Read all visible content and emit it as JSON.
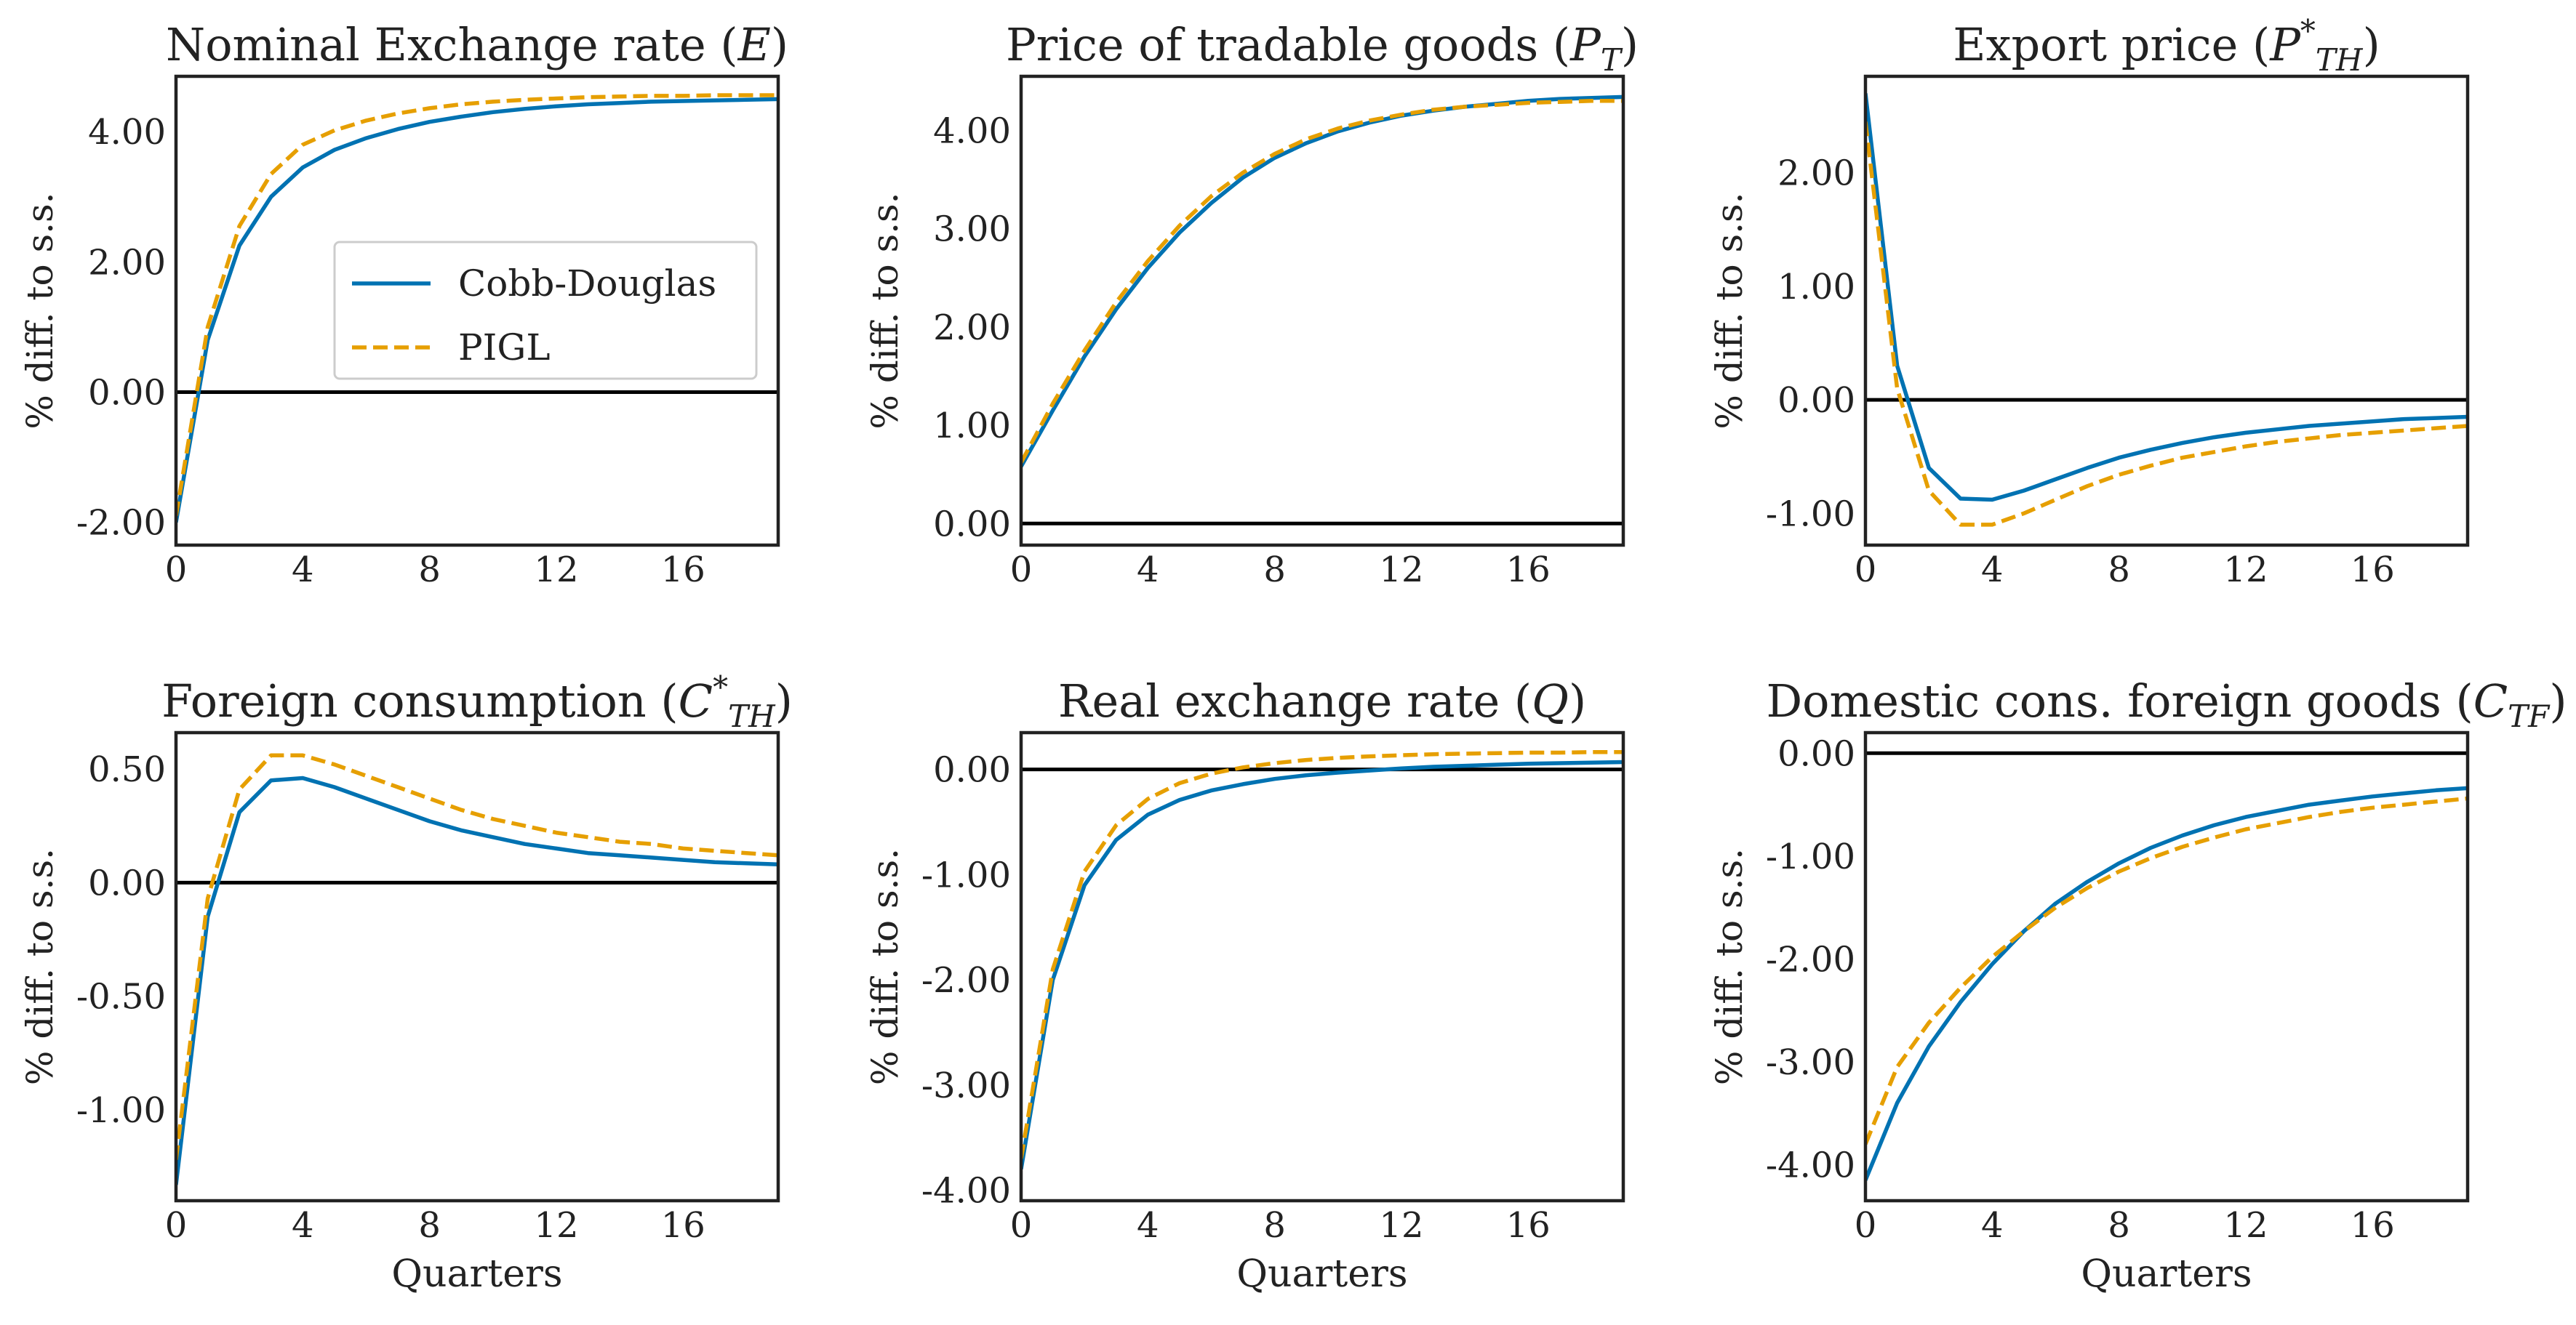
{
  "figure": {
    "colors": {
      "cobb": "#0072b2",
      "pigl": "#e69f00",
      "zero": "#000000",
      "frame": "#222222"
    },
    "legend": {
      "location": "center-right",
      "entries": [
        "Cobb-Douglas",
        "PIGL"
      ]
    }
  },
  "chart_data": [
    {
      "type": "line",
      "title": "Nominal Exchange rate (E)",
      "title_parts": [
        {
          "t": "Nominal Exchange rate ("
        },
        {
          "t": "E",
          "it": true
        },
        {
          "t": ")"
        }
      ],
      "xlabel": "",
      "ylabel": "% diff. to s.s.",
      "xlim": [
        0,
        19
      ],
      "ylim": [
        -2.35,
        4.85
      ],
      "xticks": [
        0,
        4,
        8,
        12,
        16
      ],
      "xtick_labels": [
        "0",
        "4",
        "8",
        "12",
        "16"
      ],
      "yticks": [
        -2,
        0,
        2,
        4
      ],
      "ytick_labels": [
        "-2.00",
        "0.00",
        "2.00",
        "4.00"
      ],
      "zero_line": true,
      "legend": true,
      "x": [
        0,
        1,
        2,
        3,
        4,
        5,
        6,
        7,
        8,
        9,
        10,
        11,
        12,
        13,
        14,
        15,
        16,
        17,
        18,
        19
      ],
      "series": [
        {
          "name": "Cobb-Douglas",
          "style": "solid",
          "values": [
            -2.0,
            0.8,
            2.25,
            3.0,
            3.45,
            3.72,
            3.9,
            4.04,
            4.15,
            4.23,
            4.3,
            4.35,
            4.39,
            4.42,
            4.44,
            4.46,
            4.47,
            4.48,
            4.49,
            4.5
          ]
        },
        {
          "name": "PIGL",
          "style": "dashed",
          "values": [
            -1.9,
            1.0,
            2.55,
            3.35,
            3.8,
            4.02,
            4.17,
            4.28,
            4.36,
            4.42,
            4.46,
            4.49,
            4.51,
            4.53,
            4.54,
            4.55,
            4.55,
            4.56,
            4.56,
            4.56
          ]
        }
      ]
    },
    {
      "type": "line",
      "title": "Price of tradable goods (P_T)",
      "title_parts": [
        {
          "t": "Price of tradable goods ("
        },
        {
          "t": "P",
          "it": true
        },
        {
          "t": "T",
          "it": true,
          "sub": true
        },
        {
          "t": ")"
        }
      ],
      "xlabel": "",
      "ylabel": "% diff. to s.s.",
      "xlim": [
        0,
        19
      ],
      "ylim": [
        -0.22,
        4.55
      ],
      "xticks": [
        0,
        4,
        8,
        12,
        16
      ],
      "xtick_labels": [
        "0",
        "4",
        "8",
        "12",
        "16"
      ],
      "yticks": [
        0,
        1,
        2,
        3,
        4
      ],
      "ytick_labels": [
        "0.00",
        "1.00",
        "2.00",
        "3.00",
        "4.00"
      ],
      "zero_line": true,
      "legend": false,
      "x": [
        0,
        1,
        2,
        3,
        4,
        5,
        6,
        7,
        8,
        9,
        10,
        11,
        12,
        13,
        14,
        15,
        16,
        17,
        18,
        19
      ],
      "series": [
        {
          "name": "Cobb-Douglas",
          "style": "solid",
          "values": [
            0.58,
            1.15,
            1.7,
            2.18,
            2.6,
            2.96,
            3.26,
            3.52,
            3.72,
            3.87,
            3.99,
            4.08,
            4.15,
            4.2,
            4.24,
            4.27,
            4.3,
            4.32,
            4.33,
            4.34
          ]
        },
        {
          "name": "PIGL",
          "style": "dashed",
          "values": [
            0.62,
            1.22,
            1.76,
            2.25,
            2.67,
            3.03,
            3.33,
            3.57,
            3.76,
            3.91,
            4.02,
            4.1,
            4.16,
            4.21,
            4.24,
            4.26,
            4.28,
            4.29,
            4.3,
            4.3
          ]
        }
      ]
    },
    {
      "type": "line",
      "title": "Export price (P*_TH)",
      "title_parts": [
        {
          "t": "Export price ("
        },
        {
          "t": "P",
          "it": true
        },
        {
          "t": "*",
          "sup": true
        },
        {
          "t": "TH",
          "it": true,
          "sub": true
        },
        {
          "t": ")"
        }
      ],
      "xlabel": "",
      "ylabel": "% diff. to s.s.",
      "xlim": [
        0,
        19
      ],
      "ylim": [
        -1.28,
        2.85
      ],
      "xticks": [
        0,
        4,
        8,
        12,
        16
      ],
      "xtick_labels": [
        "0",
        "4",
        "8",
        "12",
        "16"
      ],
      "yticks": [
        -1,
        0,
        1,
        2
      ],
      "ytick_labels": [
        "-1.00",
        "0.00",
        "1.00",
        "2.00"
      ],
      "zero_line": true,
      "legend": false,
      "x": [
        0,
        1,
        2,
        3,
        4,
        5,
        6,
        7,
        8,
        9,
        10,
        11,
        12,
        13,
        14,
        15,
        16,
        17,
        18,
        19
      ],
      "series": [
        {
          "name": "Cobb-Douglas",
          "style": "solid",
          "values": [
            2.7,
            0.3,
            -0.6,
            -0.87,
            -0.88,
            -0.8,
            -0.7,
            -0.6,
            -0.51,
            -0.44,
            -0.38,
            -0.33,
            -0.29,
            -0.26,
            -0.23,
            -0.21,
            -0.19,
            -0.17,
            -0.16,
            -0.15
          ]
        },
        {
          "name": "PIGL",
          "style": "dashed",
          "values": [
            2.45,
            0.1,
            -0.8,
            -1.1,
            -1.1,
            -1.0,
            -0.88,
            -0.76,
            -0.66,
            -0.58,
            -0.51,
            -0.46,
            -0.41,
            -0.37,
            -0.34,
            -0.31,
            -0.29,
            -0.27,
            -0.25,
            -0.23
          ]
        }
      ]
    },
    {
      "type": "line",
      "title": "Foreign consumption (C*_TH)",
      "title_parts": [
        {
          "t": "Foreign consumption ("
        },
        {
          "t": "C",
          "it": true
        },
        {
          "t": "*",
          "sup": true
        },
        {
          "t": "TH",
          "it": true,
          "sub": true
        },
        {
          "t": ")"
        }
      ],
      "xlabel": "Quarters",
      "ylabel": "% diff. to s.s.",
      "xlim": [
        0,
        19
      ],
      "ylim": [
        -1.4,
        0.66
      ],
      "xticks": [
        0,
        4,
        8,
        12,
        16
      ],
      "xtick_labels": [
        "0",
        "4",
        "8",
        "12",
        "16"
      ],
      "yticks": [
        -1,
        -0.5,
        0,
        0.5
      ],
      "ytick_labels": [
        "-1.00",
        "-0.50",
        "0.00",
        "0.50"
      ],
      "zero_line": true,
      "legend": false,
      "x": [
        0,
        1,
        2,
        3,
        4,
        5,
        6,
        7,
        8,
        9,
        10,
        11,
        12,
        13,
        14,
        15,
        16,
        17,
        18,
        19
      ],
      "series": [
        {
          "name": "Cobb-Douglas",
          "style": "solid",
          "values": [
            -1.33,
            -0.15,
            0.31,
            0.45,
            0.46,
            0.42,
            0.37,
            0.32,
            0.27,
            0.23,
            0.2,
            0.17,
            0.15,
            0.13,
            0.12,
            0.11,
            0.1,
            0.09,
            0.085,
            0.08
          ]
        },
        {
          "name": "PIGL",
          "style": "dashed",
          "values": [
            -1.22,
            -0.07,
            0.41,
            0.56,
            0.56,
            0.52,
            0.47,
            0.42,
            0.37,
            0.32,
            0.28,
            0.25,
            0.22,
            0.2,
            0.18,
            0.17,
            0.15,
            0.14,
            0.13,
            0.12
          ]
        }
      ]
    },
    {
      "type": "line",
      "title": "Real exchange rate (Q)",
      "title_parts": [
        {
          "t": "Real exchange rate ("
        },
        {
          "t": "Q",
          "it": true
        },
        {
          "t": ")"
        }
      ],
      "xlabel": "Quarters",
      "ylabel": "% diff. to s.s.",
      "xlim": [
        0,
        19
      ],
      "ylim": [
        -4.1,
        0.35
      ],
      "xticks": [
        0,
        4,
        8,
        12,
        16
      ],
      "xtick_labels": [
        "0",
        "4",
        "8",
        "12",
        "16"
      ],
      "yticks": [
        -4,
        -3,
        -2,
        -1,
        0
      ],
      "ytick_labels": [
        "-4.00",
        "-3.00",
        "-2.00",
        "-1.00",
        "0.00"
      ],
      "zero_line": true,
      "legend": false,
      "x": [
        0,
        1,
        2,
        3,
        4,
        5,
        6,
        7,
        8,
        9,
        10,
        11,
        12,
        13,
        14,
        15,
        16,
        17,
        18,
        19
      ],
      "series": [
        {
          "name": "Cobb-Douglas",
          "style": "solid",
          "values": [
            -3.8,
            -2.0,
            -1.1,
            -0.67,
            -0.43,
            -0.29,
            -0.2,
            -0.14,
            -0.09,
            -0.055,
            -0.03,
            -0.01,
            0.01,
            0.025,
            0.035,
            0.045,
            0.055,
            0.06,
            0.065,
            0.07
          ]
        },
        {
          "name": "PIGL",
          "style": "dashed",
          "values": [
            -3.7,
            -1.9,
            -0.97,
            -0.53,
            -0.28,
            -0.13,
            -0.04,
            0.02,
            0.06,
            0.09,
            0.11,
            0.125,
            0.135,
            0.145,
            0.15,
            0.155,
            0.16,
            0.16,
            0.165,
            0.165
          ]
        }
      ]
    },
    {
      "type": "line",
      "title": "Domestic cons. foreign goods (C_TF)",
      "title_parts": [
        {
          "t": "Domestic cons. foreign goods ("
        },
        {
          "t": "C",
          "it": true
        },
        {
          "t": "TF",
          "it": true,
          "sub": true
        },
        {
          "t": ")"
        }
      ],
      "xlabel": "Quarters",
      "ylabel": "% diff. to s.s.",
      "xlim": [
        0,
        19
      ],
      "ylim": [
        -4.35,
        0.2
      ],
      "xticks": [
        0,
        4,
        8,
        12,
        16
      ],
      "xtick_labels": [
        "0",
        "4",
        "8",
        "12",
        "16"
      ],
      "yticks": [
        -4,
        -3,
        -2,
        -1,
        0
      ],
      "ytick_labels": [
        "-4.00",
        "-3.00",
        "-2.00",
        "-1.00",
        "0.00"
      ],
      "zero_line": true,
      "legend": false,
      "x": [
        0,
        1,
        2,
        3,
        4,
        5,
        6,
        7,
        8,
        9,
        10,
        11,
        12,
        13,
        14,
        15,
        16,
        17,
        18,
        19
      ],
      "series": [
        {
          "name": "Cobb-Douglas",
          "style": "solid",
          "values": [
            -4.15,
            -3.4,
            -2.85,
            -2.42,
            -2.05,
            -1.73,
            -1.46,
            -1.25,
            -1.07,
            -0.92,
            -0.8,
            -0.7,
            -0.62,
            -0.56,
            -0.5,
            -0.46,
            -0.42,
            -0.39,
            -0.36,
            -0.34
          ]
        },
        {
          "name": "PIGL",
          "style": "dashed",
          "values": [
            -3.8,
            -3.05,
            -2.62,
            -2.28,
            -1.98,
            -1.73,
            -1.5,
            -1.31,
            -1.15,
            -1.02,
            -0.91,
            -0.82,
            -0.74,
            -0.68,
            -0.62,
            -0.57,
            -0.53,
            -0.5,
            -0.47,
            -0.44
          ]
        }
      ]
    }
  ]
}
